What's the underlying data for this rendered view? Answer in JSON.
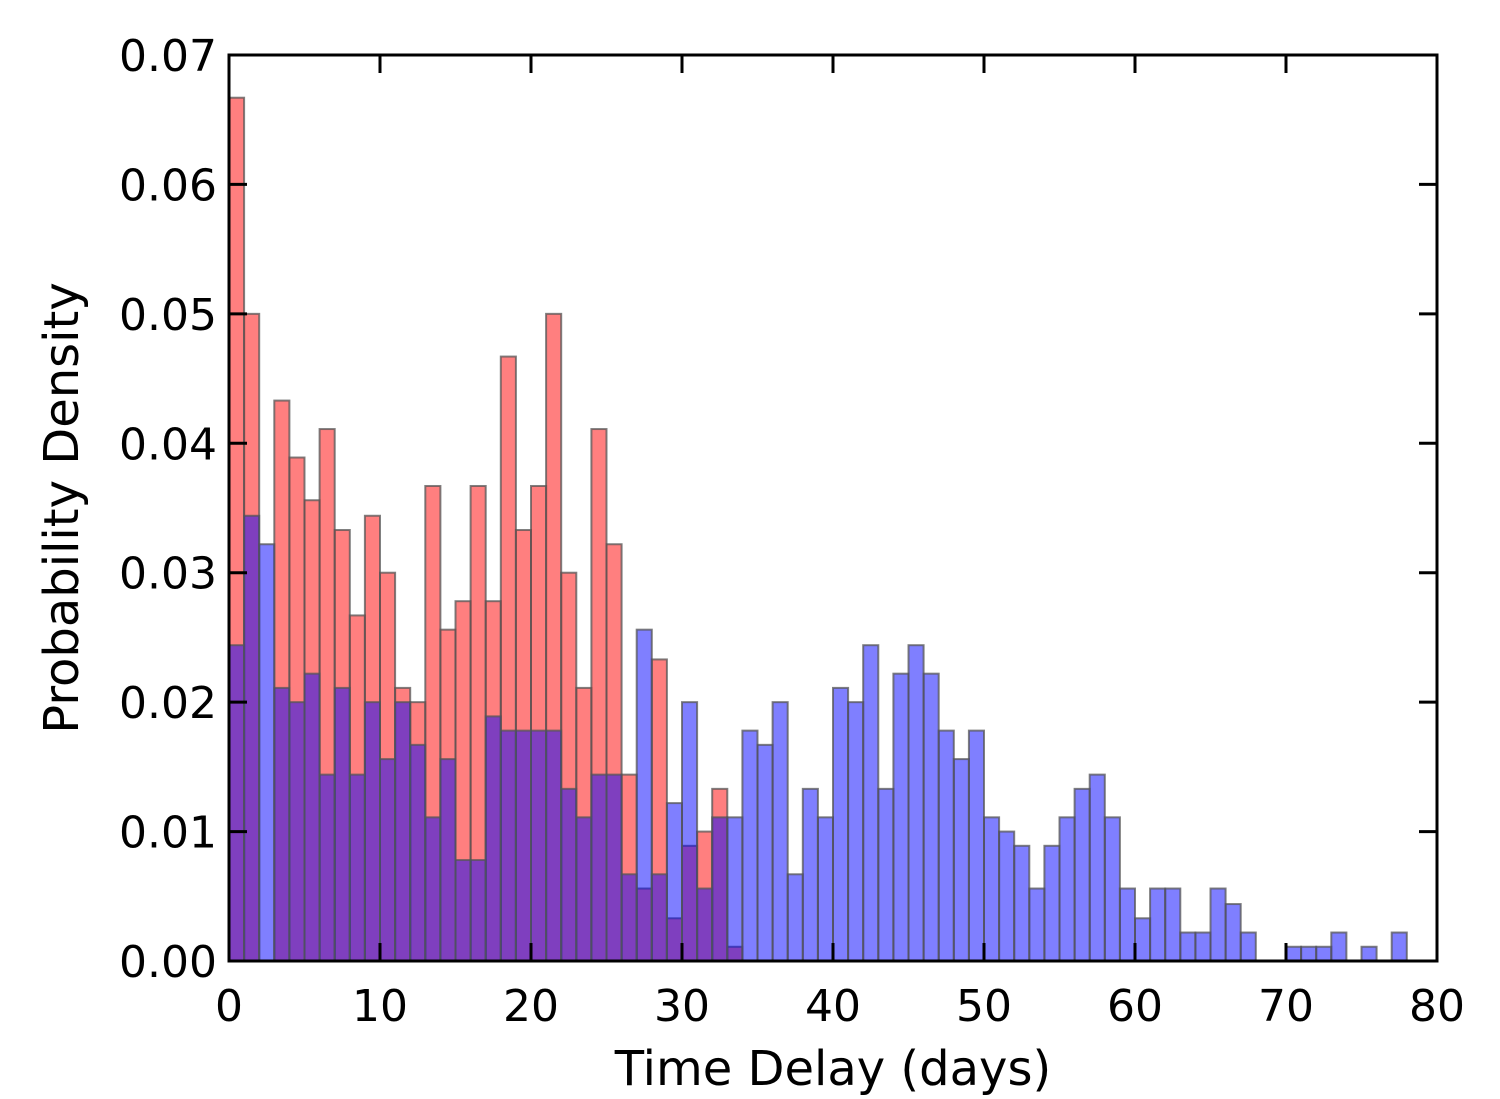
{
  "chart_data": {
    "type": "bar",
    "title": "",
    "xlabel": "Time Delay (days)",
    "ylabel": "Probability Density",
    "xlim": [
      0,
      80
    ],
    "ylim": [
      0,
      0.07
    ],
    "xticks": [
      0,
      10,
      20,
      30,
      40,
      50,
      60,
      70,
      80
    ],
    "xtick_labels": [
      "0",
      "10",
      "20",
      "30",
      "40",
      "50",
      "60",
      "70",
      "80"
    ],
    "yticks": [
      0,
      0.01,
      0.02,
      0.03,
      0.04,
      0.05,
      0.06,
      0.07
    ],
    "ytick_labels": [
      "0.00",
      "0.01",
      "0.02",
      "0.03",
      "0.04",
      "0.05",
      "0.06",
      "0.07"
    ],
    "grid": false,
    "bin_width": 1,
    "series": [
      {
        "color": "#ff0000",
        "opacity": 0.5,
        "bin_start": 0,
        "values": [
          0.0667,
          0.05,
          0.0,
          0.0433,
          0.0389,
          0.0356,
          0.0411,
          0.0333,
          0.0267,
          0.0344,
          0.03,
          0.0211,
          0.02,
          0.0367,
          0.0256,
          0.0278,
          0.0367,
          0.0278,
          0.0467,
          0.0333,
          0.0367,
          0.05,
          0.03,
          0.0211,
          0.0411,
          0.0322,
          0.0144,
          0.0056,
          0.0233,
          0.0033,
          0.0089,
          0.01,
          0.0133,
          0.0011
        ]
      },
      {
        "color": "#0000ff",
        "opacity": 0.5,
        "bin_start": 0,
        "values": [
          0.0244,
          0.0344,
          0.0322,
          0.0211,
          0.02,
          0.0222,
          0.0144,
          0.0211,
          0.0144,
          0.02,
          0.0156,
          0.02,
          0.0167,
          0.0111,
          0.0156,
          0.0078,
          0.0078,
          0.0189,
          0.0178,
          0.0178,
          0.0178,
          0.0178,
          0.0133,
          0.0111,
          0.0144,
          0.0144,
          0.0067,
          0.0256,
          0.0067,
          0.0122,
          0.02,
          0.0056,
          0.0111,
          0.0111,
          0.0178,
          0.0167,
          0.02,
          0.0067,
          0.0133,
          0.0111,
          0.0211,
          0.02,
          0.0244,
          0.0133,
          0.0222,
          0.0244,
          0.0222,
          0.0178,
          0.0156,
          0.0178,
          0.0111,
          0.01,
          0.0089,
          0.0056,
          0.0089,
          0.0111,
          0.0133,
          0.0144,
          0.0111,
          0.0056,
          0.0033,
          0.0056,
          0.0056,
          0.0022,
          0.0022,
          0.0056,
          0.0044,
          0.0022,
          0.0,
          0.0,
          0.0011,
          0.0011,
          0.0011,
          0.0022,
          0.0,
          0.0011,
          0.0,
          0.0022
        ]
      }
    ]
  }
}
